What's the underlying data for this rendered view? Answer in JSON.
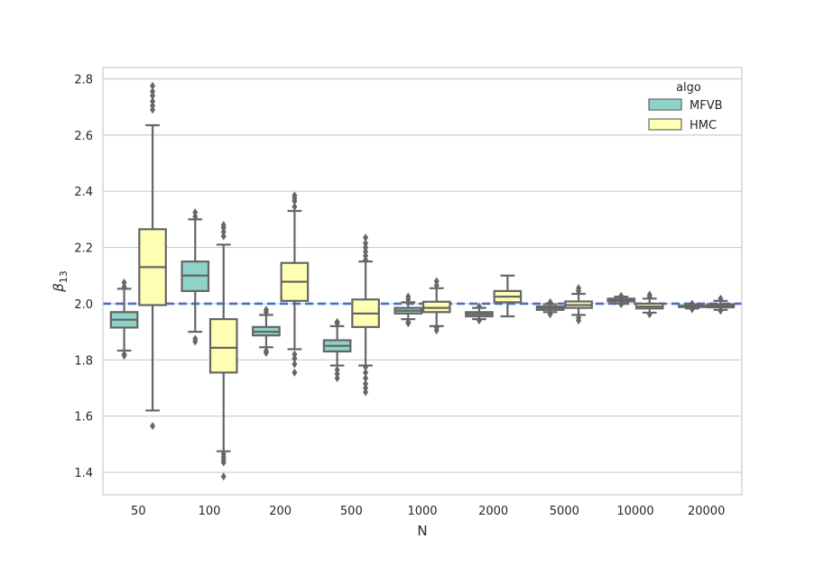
{
  "chart_data": {
    "type": "box",
    "xlabel": "N",
    "ylabel": "β13",
    "ylabel_base": "β",
    "ylabel_sub": "13",
    "ylim": [
      1.32,
      2.84
    ],
    "yticks": [
      1.4,
      1.6,
      1.8,
      2.0,
      2.2,
      2.4,
      2.6,
      2.8
    ],
    "ytick_labels": [
      "1.4",
      "1.6",
      "1.8",
      "2.0",
      "2.2",
      "2.4",
      "2.6",
      "2.8"
    ],
    "categories": [
      "50",
      "100",
      "200",
      "500",
      "1000",
      "2000",
      "5000",
      "10000",
      "20000"
    ],
    "reference_line": 2.0,
    "reference_color": "#4472c4",
    "grid": true,
    "legend": {
      "title": "algo",
      "location": "top-right",
      "entries": [
        {
          "name": "MFVB",
          "color": "#8dd3c7"
        },
        {
          "name": "HMC",
          "color": "#ffffb3"
        }
      ]
    },
    "series": [
      {
        "name": "MFVB",
        "color": "#8dd3c7",
        "boxes": [
          {
            "q1": 1.915,
            "median": 1.943,
            "q3": 1.97,
            "lo": 1.833,
            "hi": 2.053,
            "fliers": [
              1.815,
              1.82,
              2.06,
              2.075
            ]
          },
          {
            "q1": 2.045,
            "median": 2.1,
            "q3": 2.15,
            "lo": 1.9,
            "hi": 2.3,
            "fliers": [
              1.865,
              1.875,
              2.31,
              2.325
            ]
          },
          {
            "q1": 1.887,
            "median": 1.9,
            "q3": 1.917,
            "lo": 1.845,
            "hi": 1.96,
            "fliers": [
              1.825,
              1.832,
              1.97,
              1.978
            ]
          },
          {
            "q1": 1.83,
            "median": 1.85,
            "q3": 1.87,
            "lo": 1.78,
            "hi": 1.92,
            "fliers": [
              1.735,
              1.75,
              1.765,
              1.93,
              1.935
            ]
          },
          {
            "q1": 1.965,
            "median": 1.975,
            "q3": 1.985,
            "lo": 1.945,
            "hi": 2.005,
            "fliers": [
              1.93,
              1.935,
              2.015,
              2.025
            ]
          },
          {
            "q1": 1.955,
            "median": 1.963,
            "q3": 1.97,
            "lo": 1.945,
            "hi": 1.985,
            "fliers": [
              1.94,
              1.99
            ]
          },
          {
            "q1": 1.978,
            "median": 1.985,
            "q3": 1.99,
            "lo": 1.97,
            "hi": 1.998,
            "fliers": [
              1.962,
              2.005
            ]
          },
          {
            "q1": 2.008,
            "median": 2.013,
            "q3": 2.018,
            "lo": 2.0,
            "hi": 2.025,
            "fliers": [
              1.998,
              2.028
            ]
          },
          {
            "q1": 1.988,
            "median": 1.99,
            "q3": 1.993,
            "lo": 1.983,
            "hi": 1.998,
            "fliers": [
              1.98,
              2.0
            ]
          }
        ]
      },
      {
        "name": "HMC",
        "color": "#ffffb3",
        "boxes": [
          {
            "q1": 1.995,
            "median": 2.13,
            "q3": 2.265,
            "lo": 1.62,
            "hi": 2.635,
            "fliers": [
              1.565,
              2.69,
              2.705,
              2.72,
              2.74,
              2.755,
              2.775
            ]
          },
          {
            "q1": 1.755,
            "median": 1.843,
            "q3": 1.945,
            "lo": 1.475,
            "hi": 2.21,
            "fliers": [
              1.385,
              1.435,
              1.445,
              1.455,
              1.465,
              2.24,
              2.255,
              2.27,
              2.28
            ]
          },
          {
            "q1": 2.01,
            "median": 2.078,
            "q3": 2.145,
            "lo": 1.838,
            "hi": 2.33,
            "fliers": [
              1.755,
              1.785,
              1.805,
              1.82,
              2.345,
              2.365,
              2.375,
              2.385
            ]
          },
          {
            "q1": 1.917,
            "median": 1.965,
            "q3": 2.015,
            "lo": 1.78,
            "hi": 2.15,
            "fliers": [
              1.685,
              1.7,
              1.715,
              1.735,
              1.755,
              1.775,
              2.155,
              2.17,
              2.185,
              2.2,
              2.215,
              2.235
            ]
          },
          {
            "q1": 1.97,
            "median": 1.985,
            "q3": 2.007,
            "lo": 1.92,
            "hi": 2.055,
            "fliers": [
              1.905,
              1.915,
              2.065,
              2.08
            ]
          },
          {
            "q1": 2.005,
            "median": 2.025,
            "q3": 2.045,
            "lo": 1.955,
            "hi": 2.1,
            "fliers": []
          },
          {
            "q1": 1.985,
            "median": 1.995,
            "q3": 2.008,
            "lo": 1.96,
            "hi": 2.035,
            "fliers": [
              1.94,
              1.95,
              2.045,
              2.055
            ]
          },
          {
            "q1": 1.983,
            "median": 1.99,
            "q3": 2.0,
            "lo": 1.968,
            "hi": 2.018,
            "fliers": [
              1.962,
              2.025,
              2.032
            ]
          },
          {
            "q1": 1.987,
            "median": 1.993,
            "q3": 1.998,
            "lo": 1.978,
            "hi": 2.01,
            "fliers": [
              1.975,
              2.018
            ]
          }
        ]
      }
    ]
  }
}
